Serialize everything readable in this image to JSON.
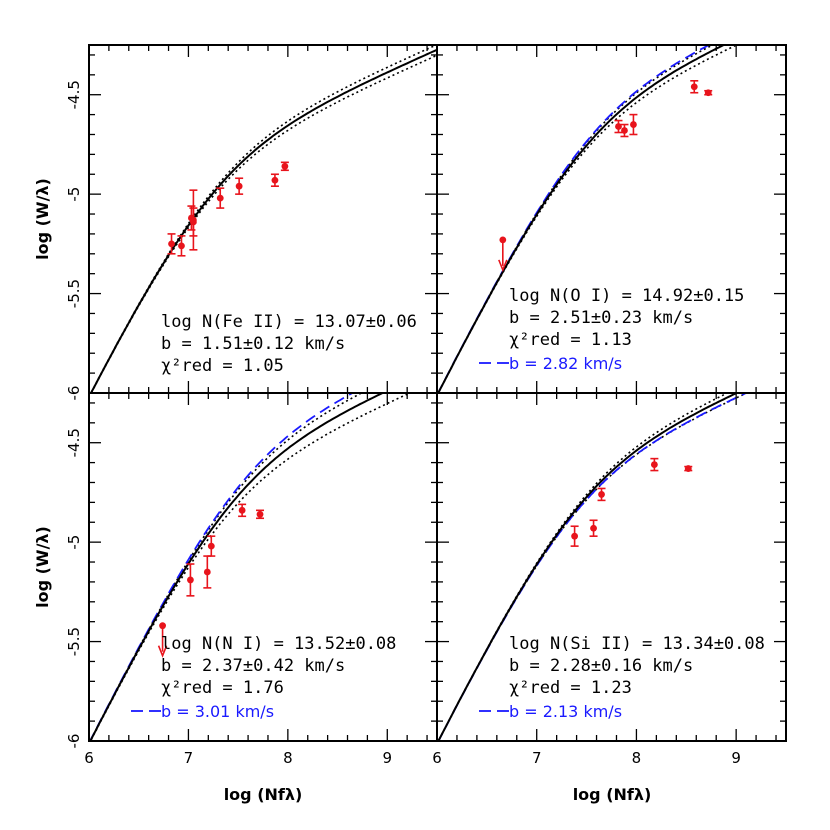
{
  "x_axis_label": "log (Nfλ)",
  "y_axis_label": "log (W/λ)",
  "colors": {
    "data": "#e8141c",
    "model": "#000000",
    "alt_model": "#1a1aff"
  },
  "chart_data": [
    {
      "type": "scatter",
      "panel": "top-left",
      "xlim": [
        6,
        9.5
      ],
      "ylim": [
        -6,
        -4.25
      ],
      "x_ticks": [
        6,
        7,
        8,
        9
      ],
      "y_ticks": [
        -6,
        -5.5,
        -5,
        -4.5
      ],
      "x_tick_labels": [],
      "y_tick_labels": [
        "-6",
        "-5.5",
        "-5",
        "-4.5"
      ],
      "curve_params": {
        "logN": 13.07,
        "b": 1.51,
        "dlogN": 0.06,
        "db": 0.12
      },
      "points": [
        {
          "x": 6.83,
          "y": -5.25,
          "err": 0.05
        },
        {
          "x": 6.93,
          "y": -5.26,
          "err": 0.05
        },
        {
          "x": 7.03,
          "y": -5.12,
          "err": 0.06
        },
        {
          "x": 7.05,
          "y": -5.14,
          "err": 0.07
        },
        {
          "x": 7.05,
          "y": -5.13,
          "err": 0.15
        },
        {
          "x": 7.32,
          "y": -5.02,
          "err": 0.05
        },
        {
          "x": 7.51,
          "y": -4.96,
          "err": 0.04
        },
        {
          "x": 7.87,
          "y": -4.93,
          "err": 0.03
        },
        {
          "x": 7.97,
          "y": -4.86,
          "err": 0.02
        }
      ],
      "upper_limits": [],
      "annotation": {
        "species": "log N(Fe II) = 13.07±0.06",
        "b": "b = 1.51±0.12 km/s",
        "chi2": "χ²red = 1.05"
      },
      "alt_label": ""
    },
    {
      "type": "scatter",
      "panel": "top-right",
      "xlim": [
        6,
        9.5
      ],
      "ylim": [
        -6,
        -4.25
      ],
      "x_ticks": [
        6,
        7,
        8,
        9
      ],
      "y_ticks": [
        -6,
        -5.5,
        -5,
        -4.5
      ],
      "x_tick_labels": [],
      "y_tick_labels": [],
      "curve_params": {
        "logN": 14.92,
        "b": 2.51,
        "dlogN": 0.15,
        "db": 0.23,
        "b_alt": 2.82
      },
      "points": [
        {
          "x": 7.82,
          "y": -4.66,
          "err": 0.03
        },
        {
          "x": 7.88,
          "y": -4.68,
          "err": 0.03
        },
        {
          "x": 7.97,
          "y": -4.65,
          "err": 0.05
        },
        {
          "x": 8.58,
          "y": -4.46,
          "err": 0.03
        },
        {
          "x": 8.72,
          "y": -4.49,
          "err": 0.01
        }
      ],
      "upper_limits": [
        {
          "x": 6.66,
          "y": -5.23
        }
      ],
      "annotation": {
        "species": "log N(O I) = 14.92±0.15",
        "b": "b = 2.51±0.23 km/s",
        "chi2": "χ²red = 1.13"
      },
      "alt_label": "b = 2.82 km/s"
    },
    {
      "type": "scatter",
      "panel": "bottom-left",
      "xlim": [
        6,
        9.5
      ],
      "ylim": [
        -6,
        -4.25
      ],
      "x_ticks": [
        6,
        7,
        8,
        9
      ],
      "y_ticks": [
        -6,
        -5.5,
        -5,
        -4.5
      ],
      "x_tick_labels": [
        "6",
        "7",
        "8",
        "9"
      ],
      "y_tick_labels": [
        "-6",
        "-5.5",
        "-5",
        "-4.5"
      ],
      "curve_params": {
        "logN": 13.52,
        "b": 2.37,
        "dlogN": 0.08,
        "db": 0.42,
        "b_alt": 3.01
      },
      "points": [
        {
          "x": 7.02,
          "y": -5.19,
          "err": 0.08
        },
        {
          "x": 7.19,
          "y": -5.15,
          "err": 0.08
        },
        {
          "x": 7.23,
          "y": -5.02,
          "err": 0.05
        },
        {
          "x": 7.54,
          "y": -4.84,
          "err": 0.03
        },
        {
          "x": 7.72,
          "y": -4.86,
          "err": 0.02
        }
      ],
      "upper_limits": [
        {
          "x": 6.74,
          "y": -5.42
        }
      ],
      "annotation": {
        "species": "log N(N I) = 13.52±0.08",
        "b": "b = 2.37±0.42 km/s",
        "chi2": "χ²red = 1.76"
      },
      "alt_label": "b = 3.01 km/s"
    },
    {
      "type": "scatter",
      "panel": "bottom-right",
      "xlim": [
        6,
        9.5
      ],
      "ylim": [
        -6,
        -4.25
      ],
      "x_ticks": [
        6,
        7,
        8,
        9
      ],
      "y_ticks": [
        -6,
        -5.5,
        -5,
        -4.5
      ],
      "x_tick_labels": [
        "6",
        "7",
        "8",
        "9"
      ],
      "y_tick_labels": [],
      "curve_params": {
        "logN": 13.34,
        "b": 2.28,
        "dlogN": 0.08,
        "db": 0.16,
        "b_alt": 2.13
      },
      "points": [
        {
          "x": 7.38,
          "y": -4.97,
          "err": 0.05
        },
        {
          "x": 7.57,
          "y": -4.93,
          "err": 0.04
        },
        {
          "x": 7.65,
          "y": -4.76,
          "err": 0.03
        },
        {
          "x": 8.18,
          "y": -4.61,
          "err": 0.03
        },
        {
          "x": 8.52,
          "y": -4.63,
          "err": 0.01
        }
      ],
      "upper_limits": [],
      "annotation": {
        "species": "log N(Si II) = 13.34±0.08",
        "b": "b = 2.28±0.16 km/s",
        "chi2": "χ²red = 1.23"
      },
      "alt_label": "b = 2.13 km/s"
    }
  ]
}
